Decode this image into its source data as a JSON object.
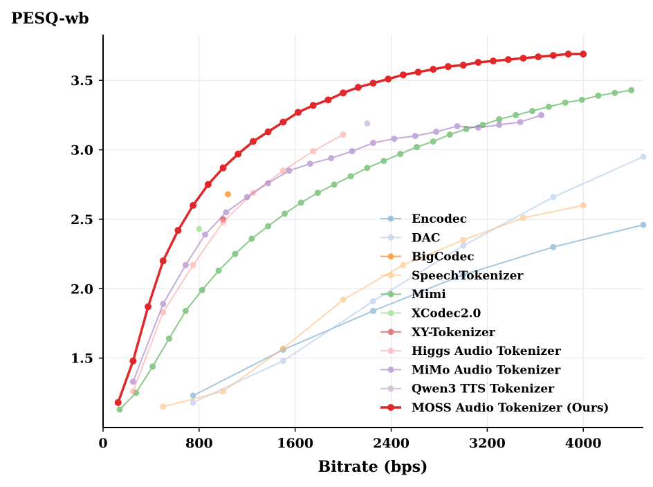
{
  "chart_data": {
    "type": "line",
    "title": "",
    "ylabel": "PESQ-wb",
    "xlabel": "Bitrate (bps)",
    "xlim": [
      0,
      4500
    ],
    "ylim": [
      1.0,
      3.83
    ],
    "xticks": [
      0,
      800,
      1600,
      2400,
      3200,
      4000
    ],
    "yticks": [
      1.5,
      2.0,
      2.5,
      3.0,
      3.5
    ],
    "grid": true,
    "legend_position": "bottom-right",
    "series": [
      {
        "name": "Encodec",
        "color": "#1f77b4",
        "opacity": 0.4,
        "points": [
          [
            750,
            1.23
          ],
          [
            1500,
            1.56
          ],
          [
            2250,
            1.84
          ],
          [
            3000,
            2.1
          ],
          [
            3750,
            2.3
          ],
          [
            4500,
            2.46
          ]
        ]
      },
      {
        "name": "DAC",
        "color": "#aec7e8",
        "opacity": 0.6,
        "points": [
          [
            750,
            1.18
          ],
          [
            1500,
            1.48
          ],
          [
            2250,
            1.91
          ],
          [
            3000,
            2.31
          ],
          [
            3750,
            2.66
          ],
          [
            4500,
            2.95
          ]
        ]
      },
      {
        "name": "BigCodec",
        "color": "#ff7f0e",
        "opacity": 0.7,
        "points": [
          [
            1040,
            2.68
          ]
        ]
      },
      {
        "name": "SpeechTokenizer",
        "color": "#ffbb78",
        "opacity": 0.6,
        "points": [
          [
            500,
            1.15
          ],
          [
            1000,
            1.26
          ],
          [
            1500,
            1.57
          ],
          [
            2000,
            1.92
          ],
          [
            2500,
            2.17
          ],
          [
            3000,
            2.35
          ],
          [
            3500,
            2.51
          ],
          [
            4000,
            2.6
          ]
        ]
      },
      {
        "name": "Mimi",
        "color": "#2ca02c",
        "opacity": 0.55,
        "points": [
          [
            138,
            1.13
          ],
          [
            275,
            1.25
          ],
          [
            413,
            1.44
          ],
          [
            550,
            1.64
          ],
          [
            688,
            1.84
          ],
          [
            825,
            1.99
          ],
          [
            963,
            2.13
          ],
          [
            1100,
            2.25
          ],
          [
            1238,
            2.36
          ],
          [
            1375,
            2.45
          ],
          [
            1513,
            2.54
          ],
          [
            1650,
            2.62
          ],
          [
            1788,
            2.69
          ],
          [
            1925,
            2.75
          ],
          [
            2063,
            2.81
          ],
          [
            2200,
            2.87
          ],
          [
            2338,
            2.92
          ],
          [
            2475,
            2.97
          ],
          [
            2613,
            3.02
          ],
          [
            2750,
            3.06
          ],
          [
            2888,
            3.11
          ],
          [
            3025,
            3.15
          ],
          [
            3163,
            3.18
          ],
          [
            3300,
            3.22
          ],
          [
            3438,
            3.25
          ],
          [
            3575,
            3.28
          ],
          [
            3713,
            3.31
          ],
          [
            3850,
            3.34
          ],
          [
            3988,
            3.36
          ],
          [
            4125,
            3.39
          ],
          [
            4263,
            3.41
          ],
          [
            4400,
            3.43
          ]
        ]
      },
      {
        "name": "XCodec2.0",
        "color": "#98df8a",
        "opacity": 0.7,
        "points": [
          [
            800,
            2.43
          ]
        ]
      },
      {
        "name": "XY-Tokenizer",
        "color": "#d62728",
        "opacity": 0.6,
        "points": [
          [
            1000,
            2.5
          ]
        ]
      },
      {
        "name": "Higgs Audio Tokenizer",
        "color": "#ff9896",
        "opacity": 0.55,
        "points": [
          [
            250,
            1.26
          ],
          [
            500,
            1.83
          ],
          [
            750,
            2.17
          ],
          [
            1000,
            2.48
          ],
          [
            1250,
            2.69
          ],
          [
            1500,
            2.85
          ],
          [
            1750,
            2.99
          ],
          [
            2000,
            3.11
          ]
        ]
      },
      {
        "name": "MiMo Audio Tokenizer",
        "color": "#9467bd",
        "opacity": 0.55,
        "points": [
          [
            250,
            1.33
          ],
          [
            500,
            1.89
          ],
          [
            688,
            2.17
          ],
          [
            850,
            2.39
          ],
          [
            1025,
            2.55
          ],
          [
            1200,
            2.66
          ],
          [
            1375,
            2.76
          ],
          [
            1550,
            2.85
          ],
          [
            1725,
            2.9
          ],
          [
            1900,
            2.94
          ],
          [
            2075,
            2.99
          ],
          [
            2250,
            3.05
          ],
          [
            2425,
            3.08
          ],
          [
            2600,
            3.1
          ],
          [
            2775,
            3.13
          ],
          [
            2950,
            3.17
          ],
          [
            3125,
            3.16
          ],
          [
            3300,
            3.18
          ],
          [
            3475,
            3.2
          ],
          [
            3650,
            3.25
          ]
        ]
      },
      {
        "name": "Qwen3 TTS Tokenizer",
        "color": "#c5b0d5",
        "opacity": 0.7,
        "points": [
          [
            2200,
            3.19
          ]
        ]
      },
      {
        "name": "MOSS Audio Tokenizer (Ours)",
        "color": "#e0282a",
        "opacity": 1.0,
        "bold": true,
        "points": [
          [
            125,
            1.18
          ],
          [
            250,
            1.48
          ],
          [
            375,
            1.87
          ],
          [
            500,
            2.2
          ],
          [
            625,
            2.42
          ],
          [
            750,
            2.6
          ],
          [
            875,
            2.75
          ],
          [
            1000,
            2.87
          ],
          [
            1125,
            2.97
          ],
          [
            1250,
            3.06
          ],
          [
            1375,
            3.13
          ],
          [
            1500,
            3.2
          ],
          [
            1625,
            3.27
          ],
          [
            1750,
            3.32
          ],
          [
            1875,
            3.36
          ],
          [
            2000,
            3.41
          ],
          [
            2125,
            3.45
          ],
          [
            2250,
            3.48
          ],
          [
            2375,
            3.51
          ],
          [
            2500,
            3.54
          ],
          [
            2625,
            3.56
          ],
          [
            2750,
            3.58
          ],
          [
            2875,
            3.6
          ],
          [
            3000,
            3.61
          ],
          [
            3125,
            3.63
          ],
          [
            3250,
            3.64
          ],
          [
            3375,
            3.65
          ],
          [
            3500,
            3.66
          ],
          [
            3625,
            3.67
          ],
          [
            3750,
            3.68
          ],
          [
            3875,
            3.69
          ],
          [
            4000,
            3.69
          ]
        ]
      }
    ]
  }
}
